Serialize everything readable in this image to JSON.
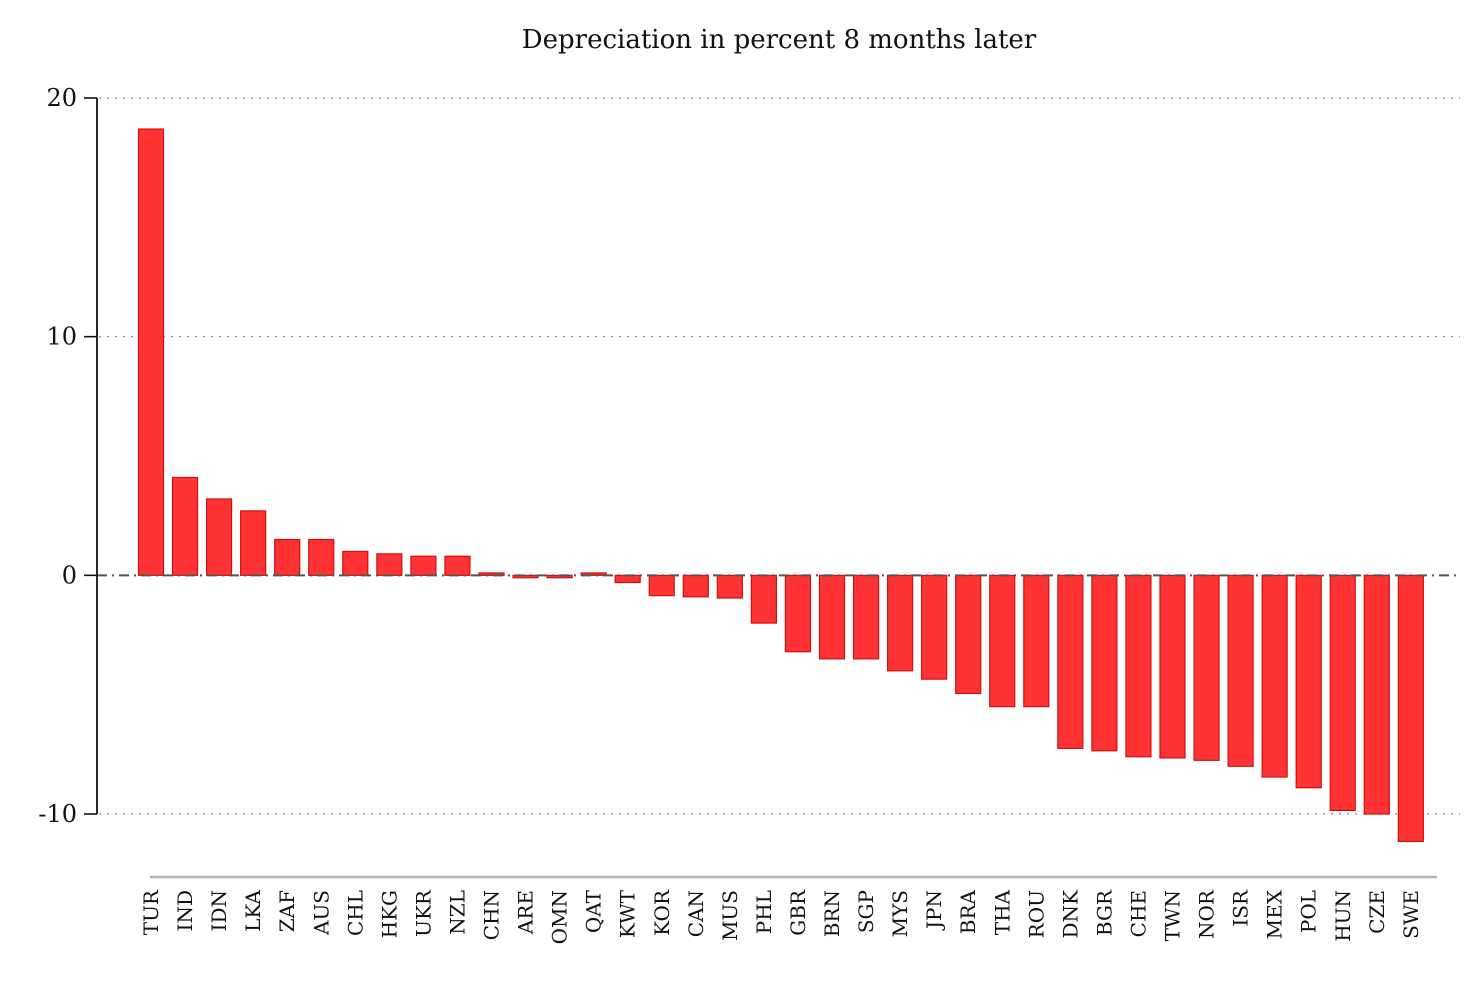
{
  "chart_data": {
    "type": "bar",
    "title": "Depreciation in percent 8 months later",
    "xlabel": "",
    "ylabel": "",
    "ylim": [
      -10,
      20
    ],
    "yticks": [
      20,
      10,
      0,
      -10
    ],
    "ytick_labels": [
      "20",
      "10",
      "0",
      "-10"
    ],
    "grid": true,
    "zero_reference_line": true,
    "categories": [
      "TUR",
      "IND",
      "IDN",
      "LKA",
      "ZAF",
      "AUS",
      "CHL",
      "HKG",
      "UKR",
      "NZL",
      "CHN",
      "ARE",
      "OMN",
      "QAT",
      "KWT",
      "KOR",
      "CAN",
      "MUS",
      "PHL",
      "GBR",
      "BRN",
      "SGP",
      "MYS",
      "JPN",
      "BRA",
      "THA",
      "ROU",
      "DNK",
      "BGR",
      "CHE",
      "TWN",
      "NOR",
      "ISR",
      "MEX",
      "POL",
      "HUN",
      "CZE",
      "SWE"
    ],
    "values": [
      18.7,
      4.1,
      3.2,
      2.7,
      1.5,
      1.5,
      1.0,
      0.9,
      0.8,
      0.8,
      0.1,
      -0.1,
      -0.1,
      0.1,
      -0.3,
      -0.85,
      -0.9,
      -0.95,
      -2.0,
      -3.2,
      -3.5,
      -3.5,
      -4.0,
      -4.35,
      -4.95,
      -5.5,
      -5.5,
      -7.25,
      -7.35,
      -7.6,
      -7.65,
      -7.75,
      -8.0,
      -8.45,
      -8.9,
      -9.85,
      -10.0,
      -11.15
    ],
    "bar_color": "#ff3333",
    "bar_edge_color": "#d01010"
  }
}
